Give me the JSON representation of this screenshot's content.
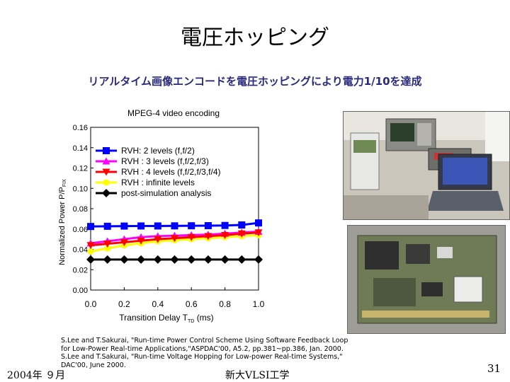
{
  "slide": {
    "title": "電圧ホッピング",
    "subtitle": "リアルタイム画像エンコードを電圧ホッピングにより電力1/10を達成",
    "reference_lines": [
      "S.Lee and T.Sakurai, \"Run-time Power Control Scheme Using Software Feedback Loop",
      "for Low-Power Real-time Applications,\"ASPDAC'00, A5.2, pp.381~pp.386, Jan. 2000.",
      "S.Lee and T.Sakurai, \"Run-time Voltage Hopping for Low-power Real-time Systems,\"",
      "DAC'00, June 2000."
    ],
    "footer_date": "2004年 ９月",
    "footer_org": "新大VLSI工学",
    "page_number": "31"
  },
  "photos": {
    "lab_setup": "lab-equipment-photo",
    "board": "circuit-board-photo"
  },
  "chart_data": {
    "type": "line",
    "title": "MPEG-4 video encoding",
    "xlabel": "Transition Delay T",
    "xlabel_sub": "TD",
    "xlabel_unit": "(ms)",
    "ylabel": "Normalized Power P/P",
    "ylabel_sub": "FIX",
    "xlim": [
      0.0,
      1.0
    ],
    "ylim": [
      0.0,
      0.16
    ],
    "x_ticks": [
      "0.0",
      "0.2",
      "0.4",
      "0.6",
      "0.8",
      "1.0"
    ],
    "x_tick_values": [
      0.0,
      0.2,
      0.4,
      0.6,
      0.8,
      1.0
    ],
    "y_ticks": [
      "0.00",
      "0.02",
      "0.04",
      "0.06",
      "0.08",
      "0.10",
      "0.12",
      "0.14",
      "0.16"
    ],
    "y_tick_values": [
      0.0,
      0.02,
      0.04,
      0.06,
      0.08,
      0.1,
      0.12,
      0.14,
      0.16
    ],
    "grid": false,
    "legend_position": "top-left inside",
    "x": [
      0.0,
      0.1,
      0.2,
      0.3,
      0.4,
      0.5,
      0.6,
      0.7,
      0.8,
      0.9,
      1.0
    ],
    "series": [
      {
        "name": "RVH: 2 levels (f,f/2)",
        "color": "#0000ff",
        "marker": "square",
        "values": [
          0.0625,
          0.0627,
          0.0629,
          0.063,
          0.063,
          0.0631,
          0.0632,
          0.0633,
          0.0635,
          0.064,
          0.066
        ]
      },
      {
        "name": "RVH : 3 levels (f,f/2,f/3)",
        "color": "#ff00ff",
        "marker": "triangle",
        "values": [
          0.046,
          0.048,
          0.05,
          0.052,
          0.053,
          0.0535,
          0.054,
          0.0545,
          0.0555,
          0.0565,
          0.0575
        ]
      },
      {
        "name": "RVH : 4 levels (f,f/2,f/3,f/4)",
        "color": "#ff0000",
        "marker": "triangle-down",
        "values": [
          0.044,
          0.0455,
          0.047,
          0.0485,
          0.05,
          0.051,
          0.052,
          0.053,
          0.054,
          0.0555,
          0.0565
        ]
      },
      {
        "name": "RVH : infinite levels",
        "color": "#ffff00",
        "marker": "circle",
        "values": [
          0.038,
          0.041,
          0.044,
          0.046,
          0.048,
          0.049,
          0.05,
          0.051,
          0.052,
          0.053,
          0.054
        ]
      },
      {
        "name": "post-simulation analysis",
        "color": "#000000",
        "marker": "diamond",
        "values": [
          0.03,
          0.03,
          0.03,
          0.03,
          0.03,
          0.03,
          0.03,
          0.03,
          0.03,
          0.03,
          0.03
        ]
      }
    ]
  }
}
